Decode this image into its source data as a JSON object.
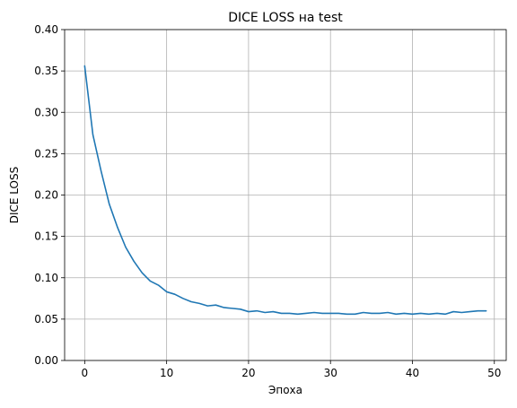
{
  "chart_data": {
    "type": "line",
    "title": "DICE LOSS на test",
    "xlabel": "Эпоха",
    "ylabel": "DICE LOSS",
    "xlim": [
      -2.45,
      51.45
    ],
    "ylim": [
      0,
      0.4
    ],
    "xticks": [
      0,
      10,
      20,
      30,
      40,
      50
    ],
    "yticks": [
      0.0,
      0.05,
      0.1,
      0.15,
      0.2,
      0.25,
      0.3,
      0.35,
      0.4
    ],
    "ytick_labels": [
      "0.00",
      "0.05",
      "0.10",
      "0.15",
      "0.20",
      "0.25",
      "0.30",
      "0.35",
      "0.40"
    ],
    "grid": true,
    "series": [
      {
        "color": "#1f77b4",
        "x": [
          0,
          1,
          2,
          3,
          4,
          5,
          6,
          7,
          8,
          9,
          10,
          11,
          12,
          13,
          14,
          15,
          16,
          17,
          18,
          19,
          20,
          21,
          22,
          23,
          24,
          25,
          26,
          27,
          28,
          29,
          30,
          31,
          32,
          33,
          34,
          35,
          36,
          37,
          38,
          39,
          40,
          41,
          42,
          43,
          44,
          45,
          46,
          47,
          48,
          49
        ],
        "values": [
          0.356,
          0.273,
          0.229,
          0.189,
          0.161,
          0.137,
          0.12,
          0.106,
          0.096,
          0.091,
          0.083,
          0.08,
          0.075,
          0.071,
          0.069,
          0.066,
          0.067,
          0.064,
          0.063,
          0.062,
          0.059,
          0.06,
          0.058,
          0.059,
          0.057,
          0.057,
          0.056,
          0.057,
          0.058,
          0.057,
          0.057,
          0.057,
          0.056,
          0.056,
          0.058,
          0.057,
          0.057,
          0.058,
          0.056,
          0.057,
          0.056,
          0.057,
          0.056,
          0.057,
          0.056,
          0.059,
          0.058,
          0.059,
          0.06,
          0.06
        ]
      }
    ]
  }
}
